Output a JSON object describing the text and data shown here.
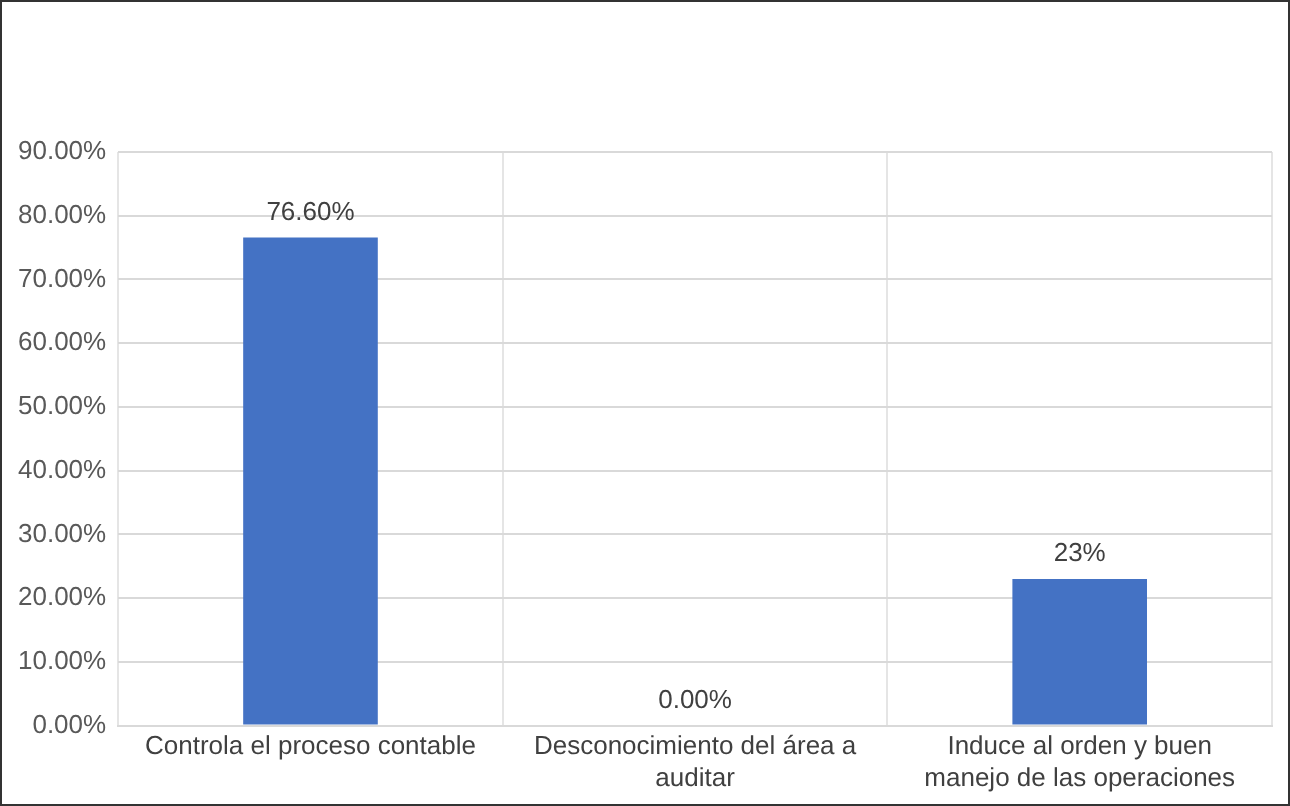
{
  "chart_data": {
    "type": "bar",
    "categories": [
      "Controla el proceso contable",
      "Desconocimiento del área a auditar",
      "Induce al orden y buen manejo de las operaciones"
    ],
    "values": [
      76.6,
      0,
      23
    ],
    "color": "#4472c4",
    "value_labels": [
      "76.60%",
      "0.00%",
      "23%"
    ],
    "ylim": [
      0,
      90
    ],
    "yticks": [
      {
        "value": 0,
        "label": "0.00%"
      },
      {
        "value": 10,
        "label": "10.00%"
      },
      {
        "value": 20,
        "label": "20.00%"
      },
      {
        "value": 30,
        "label": "30.00%"
      },
      {
        "value": 40,
        "label": "40.00%"
      },
      {
        "value": 50,
        "label": "50.00%"
      },
      {
        "value": 60,
        "label": "60.00%"
      },
      {
        "value": 70,
        "label": "70.00%"
      },
      {
        "value": 80,
        "label": "80.00%"
      },
      {
        "value": 90,
        "label": "90.00%"
      }
    ],
    "grid": true
  }
}
